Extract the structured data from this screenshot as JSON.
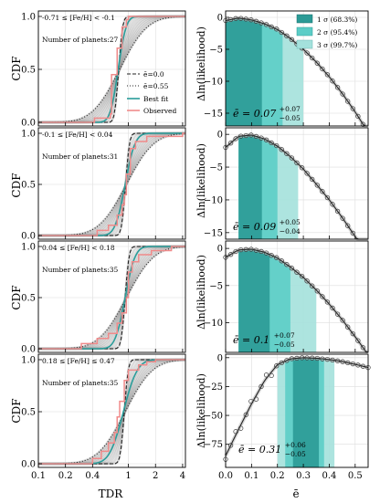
{
  "figure": {
    "left_xlabel": "TDR",
    "left_ylabel": "CDF",
    "right_xlabel": "ē",
    "right_ylabel": "Δln(likelihood)"
  },
  "legend_left": {
    "items": [
      "ē=0.0",
      "ē=0.55",
      "Best fit",
      "Observed"
    ]
  },
  "legend_right": {
    "items": [
      "1 σ (68.3%)",
      "2 σ (95.4%)",
      "3 σ (99.7%)"
    ]
  },
  "colors": {
    "teal": "#2a9d9a",
    "sigma1": "#2b9a96",
    "sigma2": "#5ccdc7",
    "sigma3": "#a4e1dc",
    "observed": "#f08a8a",
    "dark": "#333333"
  },
  "chart_data": [
    {
      "type": "line",
      "panel": "left",
      "title": "-0.71 ≤ [Fe/H] < -0.1",
      "annotation": "Number of planets:27",
      "xscale": "log",
      "xlim": [
        0.1,
        4.3
      ],
      "ylim": [
        0,
        1
      ],
      "xticks": [
        "0.1",
        "0.2",
        "0.4",
        "1",
        "2",
        "4"
      ],
      "yticks": [
        "0.0",
        "0.5",
        "1.0"
      ],
      "series": [
        {
          "name": "ē=0.0",
          "median": 0.78,
          "width": 0.08
        },
        {
          "name": "ē=0.55",
          "median": 0.8,
          "width": 0.55
        },
        {
          "name": "Best fit",
          "median": 0.77,
          "width": 0.16
        },
        {
          "name": "Observed",
          "x": [
            0.1,
            0.42,
            0.42,
            0.63,
            0.65,
            0.75,
            0.85,
            0.95,
            1.0
          ],
          "y": [
            0.0,
            0.0,
            0.04,
            0.08,
            0.45,
            0.7,
            0.9,
            0.97,
            1.0
          ]
        }
      ]
    },
    {
      "type": "line",
      "panel": "left",
      "title": "-0.1 ≤ [Fe/H] < 0.04",
      "annotation": "Number of planets:31",
      "xscale": "log",
      "xlim": [
        0.1,
        4.3
      ],
      "ylim": [
        0,
        1
      ],
      "yticks": [
        "0.0",
        "0.5",
        "1.0"
      ],
      "series": [
        {
          "name": "ē=0.0",
          "median": 0.93,
          "width": 0.08
        },
        {
          "name": "ē=0.55",
          "median": 0.95,
          "width": 0.55
        },
        {
          "name": "Best fit",
          "median": 0.92,
          "width": 0.2
        },
        {
          "name": "Observed",
          "x": [
            0.1,
            0.32,
            0.45,
            0.6,
            0.75,
            0.85,
            0.9,
            0.95,
            1.05,
            1.2,
            1.6,
            4.0
          ],
          "y": [
            0.0,
            0.0,
            0.05,
            0.1,
            0.2,
            0.3,
            0.4,
            0.6,
            0.85,
            0.92,
            0.97,
            1.0
          ]
        }
      ]
    },
    {
      "type": "line",
      "panel": "left",
      "title": "0.04 ≤ [Fe/H] < 0.18",
      "annotation": "Number of planets:35",
      "xscale": "log",
      "xlim": [
        0.1,
        4.3
      ],
      "ylim": [
        0,
        1
      ],
      "yticks": [
        "0.0",
        "0.5",
        "1.0"
      ],
      "series": [
        {
          "name": "ē=0.0",
          "median": 0.92,
          "width": 0.08
        },
        {
          "name": "ē=0.55",
          "median": 0.95,
          "width": 0.55
        },
        {
          "name": "Best fit",
          "median": 0.92,
          "width": 0.2
        },
        {
          "name": "Observed",
          "x": [
            0.1,
            0.2,
            0.3,
            0.45,
            0.6,
            0.75,
            0.85,
            0.95,
            1.0,
            1.1,
            1.3,
            1.8,
            3.0
          ],
          "y": [
            0.0,
            0.0,
            0.05,
            0.1,
            0.15,
            0.25,
            0.35,
            0.5,
            0.75,
            0.85,
            0.92,
            0.96,
            1.0
          ]
        }
      ]
    },
    {
      "type": "line",
      "panel": "left",
      "title": "0.18 ≤ [Fe/H] ≤ 0.47",
      "annotation": "Number of planets:35",
      "xscale": "log",
      "xlim": [
        0.1,
        4.3
      ],
      "ylim": [
        0,
        1
      ],
      "yticks": [
        "0.0",
        "0.5",
        "1.0"
      ],
      "series": [
        {
          "name": "ē=0.0",
          "median": 0.9,
          "width": 0.08
        },
        {
          "name": "ē=0.55",
          "median": 0.92,
          "width": 0.55
        },
        {
          "name": "Best fit",
          "median": 0.88,
          "width": 0.28
        },
        {
          "name": "Observed",
          "x": [
            0.1,
            0.28,
            0.4,
            0.5,
            0.6,
            0.7,
            0.75,
            0.8,
            0.9,
            1.0,
            1.3,
            1.6,
            2.0
          ],
          "y": [
            0.0,
            0.0,
            0.05,
            0.12,
            0.2,
            0.3,
            0.45,
            0.6,
            0.8,
            0.9,
            0.95,
            0.98,
            1.0
          ]
        }
      ]
    },
    {
      "type": "area",
      "panel": "right",
      "xlim": [
        0,
        0.55
      ],
      "ylim": [
        -17,
        1
      ],
      "yticks": [
        "0",
        "−5",
        "−10",
        "−15"
      ],
      "xticks": [
        "0.0",
        "0.1",
        "0.2",
        "0.3",
        "0.4",
        "0.5"
      ],
      "best": 0.07,
      "sigma_bounds": [
        0.0,
        0.14,
        0.22,
        0.3
      ],
      "annotation": {
        "prefix": "ē = 0.07",
        "plus": "+0.07",
        "minus": "−0.05"
      },
      "curve": {
        "x": [
          0.0,
          0.05,
          0.1,
          0.15,
          0.2,
          0.25,
          0.3,
          0.35,
          0.4,
          0.45,
          0.5,
          0.55
        ],
        "y": [
          -0.5,
          -0.1,
          -0.4,
          -1.0,
          -1.9,
          -3.3,
          -5.0,
          -7.0,
          -9.3,
          -11.9,
          -14.8,
          -18.0
        ]
      }
    },
    {
      "type": "area",
      "panel": "right",
      "xlim": [
        0,
        0.55
      ],
      "ylim": [
        -16,
        1
      ],
      "yticks": [
        "0",
        "−5",
        "−10",
        "−15"
      ],
      "best": 0.09,
      "sigma_bounds": [
        0.05,
        0.14,
        0.2,
        0.28
      ],
      "annotation": {
        "prefix": "ē = 0.09",
        "plus": "+0.05",
        "minus": "−0.04"
      },
      "curve": {
        "x": [
          0.0,
          0.05,
          0.1,
          0.15,
          0.2,
          0.25,
          0.3,
          0.35,
          0.4,
          0.45,
          0.5,
          0.55
        ],
        "y": [
          -2.0,
          -0.3,
          -0.1,
          -0.7,
          -1.8,
          -3.4,
          -5.3,
          -7.6,
          -10.0,
          -12.7,
          -15.6,
          -18.5
        ]
      }
    },
    {
      "type": "area",
      "panel": "right",
      "xlim": [
        0,
        0.55
      ],
      "ylim": [
        -14,
        1
      ],
      "yticks": [
        "0",
        "−5",
        "−10"
      ],
      "best": 0.1,
      "sigma_bounds": [
        0.05,
        0.17,
        0.25,
        0.35
      ],
      "annotation": {
        "prefix": "ē = 0.1",
        "plus": "+0.07",
        "minus": "−0.05"
      },
      "curve": {
        "x": [
          0.0,
          0.05,
          0.1,
          0.15,
          0.2,
          0.25,
          0.3,
          0.35,
          0.4,
          0.45,
          0.5,
          0.55
        ],
        "y": [
          -1.2,
          -0.2,
          -0.1,
          -0.5,
          -1.3,
          -2.5,
          -3.9,
          -5.6,
          -7.5,
          -9.6,
          -11.9,
          -14.3
        ]
      }
    },
    {
      "type": "area",
      "panel": "right",
      "xlim": [
        0,
        0.55
      ],
      "ylim": [
        -95,
        3
      ],
      "yticks": [
        "0",
        "−25",
        "−50",
        "−75"
      ],
      "best": 0.31,
      "sigma_bounds": [
        0.2,
        0.26,
        0.36,
        0.42
      ],
      "annotation": {
        "prefix": "ē = 0.31",
        "plus": "+0.06",
        "minus": "−0.05"
      },
      "curve": {
        "x": [
          0.0,
          0.05,
          0.1,
          0.15,
          0.2,
          0.25,
          0.3,
          0.35,
          0.4,
          0.45,
          0.5,
          0.55
        ],
        "y": [
          -85.0,
          -62.0,
          -40.0,
          -20.0,
          -6.0,
          -1.0,
          0.0,
          -0.5,
          -1.6,
          -3.4,
          -5.8,
          -8.5
        ]
      }
    }
  ]
}
